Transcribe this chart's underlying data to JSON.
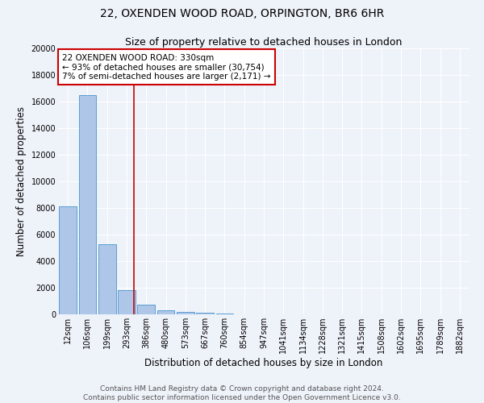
{
  "title": "22, OXENDEN WOOD ROAD, ORPINGTON, BR6 6HR",
  "subtitle": "Size of property relative to detached houses in London",
  "xlabel": "Distribution of detached houses by size in London",
  "ylabel": "Number of detached properties",
  "footer_line1": "Contains HM Land Registry data © Crown copyright and database right 2024.",
  "footer_line2": "Contains public sector information licensed under the Open Government Licence v3.0.",
  "bin_labels": [
    "12sqm",
    "106sqm",
    "199sqm",
    "293sqm",
    "386sqm",
    "480sqm",
    "573sqm",
    "667sqm",
    "760sqm",
    "854sqm",
    "947sqm",
    "1041sqm",
    "1134sqm",
    "1228sqm",
    "1321sqm",
    "1415sqm",
    "1508sqm",
    "1602sqm",
    "1695sqm",
    "1789sqm",
    "1882sqm"
  ],
  "bar_heights": [
    8100,
    16500,
    5300,
    1800,
    700,
    300,
    170,
    100,
    50,
    0,
    0,
    0,
    0,
    0,
    0,
    0,
    0,
    0,
    0,
    0,
    0
  ],
  "bar_color": "#aec6e8",
  "bar_edge_color": "#5a9fd4",
  "property_line_x": 3.37,
  "property_line_color": "#cc0000",
  "annotation_text": "22 OXENDEN WOOD ROAD: 330sqm\n← 93% of detached houses are smaller (30,754)\n7% of semi-detached houses are larger (2,171) →",
  "annotation_box_color": "#ffffff",
  "annotation_box_edge_color": "#cc0000",
  "ylim": [
    0,
    20000
  ],
  "yticks": [
    0,
    2000,
    4000,
    6000,
    8000,
    10000,
    12000,
    14000,
    16000,
    18000,
    20000
  ],
  "background_color": "#eef2f9",
  "grid_color": "#ffffff",
  "title_fontsize": 10,
  "subtitle_fontsize": 9,
  "axis_label_fontsize": 8.5,
  "tick_fontsize": 7,
  "annotation_fontsize": 7.5,
  "footer_fontsize": 6.5
}
